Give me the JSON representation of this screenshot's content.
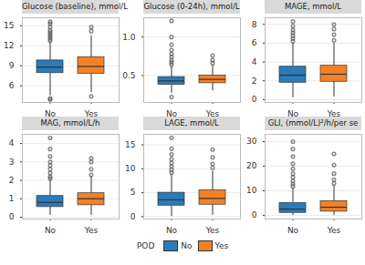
{
  "legend": "bottom",
  "legend_title": "POD",
  "chart_data": [
    {
      "type": "box",
      "title": "Glucose (baseline), mmol/L",
      "categories": [
        "No",
        "Yes"
      ],
      "colors": [
        "#2b7bba",
        "#f28127"
      ],
      "ylim": [
        3.5,
        16.2
      ],
      "yticks": [
        6,
        9,
        12,
        15
      ],
      "grid": true,
      "boxes": [
        {
          "min": 4.5,
          "q1": 7.9,
          "median": 8.8,
          "q3": 9.8,
          "max": 12.6,
          "outliers": [
            3.9,
            4.1,
            12.8,
            13.1,
            13.4,
            13.7,
            14.0,
            14.3,
            14.8,
            15.3,
            15.6
          ]
        },
        {
          "min": 5.0,
          "q1": 7.8,
          "median": 8.9,
          "q3": 10.3,
          "max": 13.5,
          "outliers": [
            4.4,
            14.2,
            14.8
          ]
        }
      ]
    },
    {
      "type": "box",
      "title": "Glucose (0-24h), mmol/L",
      "categories": [
        "No",
        "Yes"
      ],
      "colors": [
        "#2b7bba",
        "#f28127"
      ],
      "ylim": [
        0.15,
        1.25
      ],
      "yticks": [
        {
          "value": 0.5,
          "label": "0.5"
        },
        {
          "value": 1,
          "label": "1.0"
        }
      ],
      "grid": true,
      "boxes": [
        {
          "min": 0.27,
          "q1": 0.38,
          "median": 0.43,
          "q3": 0.48,
          "max": 0.62,
          "outliers": [
            0.22,
            0.64,
            0.67,
            0.7,
            0.74,
            0.78,
            0.83,
            0.9,
            1.0,
            1.21
          ]
        },
        {
          "min": 0.3,
          "q1": 0.4,
          "median": 0.45,
          "q3": 0.5,
          "max": 0.63,
          "outliers": [
            0.66,
            0.7,
            0.76
          ]
        }
      ]
    },
    {
      "type": "box",
      "title": "MAGE, mmol/L",
      "categories": [
        "No",
        "Yes"
      ],
      "colors": [
        "#2b7bba",
        "#f28127"
      ],
      "ylim": [
        -0.3,
        8.7
      ],
      "yticks": [
        0,
        2,
        4,
        6,
        8
      ],
      "grid": true,
      "boxes": [
        {
          "min": 0.2,
          "q1": 1.8,
          "median": 2.6,
          "q3": 3.5,
          "max": 6.0,
          "outliers": [
            6.2,
            6.5,
            6.8,
            7.1,
            7.4,
            7.8,
            8.3
          ]
        },
        {
          "min": 0.3,
          "q1": 1.9,
          "median": 2.7,
          "q3": 3.6,
          "max": 6.0,
          "outliers": [
            6.3,
            6.9,
            7.5,
            8.0
          ]
        }
      ]
    },
    {
      "type": "box",
      "title": "MAG, mmol/L/h",
      "categories": [
        "No",
        "Yes"
      ],
      "colors": [
        "#2b7bba",
        "#f28127"
      ],
      "ylim": [
        -0.1,
        4.5
      ],
      "yticks": [
        0,
        1,
        2,
        3,
        4
      ],
      "grid": true,
      "boxes": [
        {
          "min": 0.1,
          "q1": 0.55,
          "median": 0.8,
          "q3": 1.15,
          "max": 2.0,
          "outliers": [
            2.1,
            2.2,
            2.4,
            2.6,
            2.8,
            3.0,
            3.3,
            3.7,
            4.3
          ]
        },
        {
          "min": 0.1,
          "q1": 0.65,
          "median": 1.0,
          "q3": 1.3,
          "max": 2.2,
          "outliers": [
            2.3,
            2.6,
            3.0,
            3.2
          ]
        }
      ]
    },
    {
      "type": "box",
      "title": "LAGE, mmol/L",
      "categories": [
        "No",
        "Yes"
      ],
      "colors": [
        "#2b7bba",
        "#f28127"
      ],
      "ylim": [
        -0.5,
        17.2
      ],
      "yticks": [
        0,
        5,
        10,
        15
      ],
      "grid": true,
      "boxes": [
        {
          "min": 0,
          "q1": 2.3,
          "median": 3.5,
          "q3": 5.0,
          "max": 8.8,
          "outliers": [
            9.2,
            9.8,
            10.5,
            11.2,
            12.0,
            13.0,
            14.2,
            16.5
          ]
        },
        {
          "min": 0.3,
          "q1": 2.5,
          "median": 3.8,
          "q3": 5.5,
          "max": 9.5,
          "outliers": [
            10.2,
            11.0,
            12.4,
            14.0
          ]
        }
      ]
    },
    {
      "type": "box",
      "title": "GLI, (mmol/L)²/h/per se",
      "categories": [
        "No",
        "Yes"
      ],
      "colors": [
        "#2b7bba",
        "#f28127"
      ],
      "ylim": [
        -1.5,
        33
      ],
      "yticks": [
        0,
        10,
        20,
        30
      ],
      "grid": true,
      "boxes": [
        {
          "min": 0,
          "q1": 1.0,
          "median": 2.5,
          "q3": 5.0,
          "max": 11.0,
          "outliers": [
            11.8,
            12.8,
            14.0,
            15.5,
            17.0,
            19.0,
            21.0,
            24.0,
            27.0,
            30.0
          ]
        },
        {
          "min": 0,
          "q1": 1.5,
          "median": 3.3,
          "q3": 5.8,
          "max": 12.0,
          "outliers": [
            13.0,
            14.5,
            17.0,
            20.5,
            25.0
          ]
        }
      ]
    }
  ]
}
